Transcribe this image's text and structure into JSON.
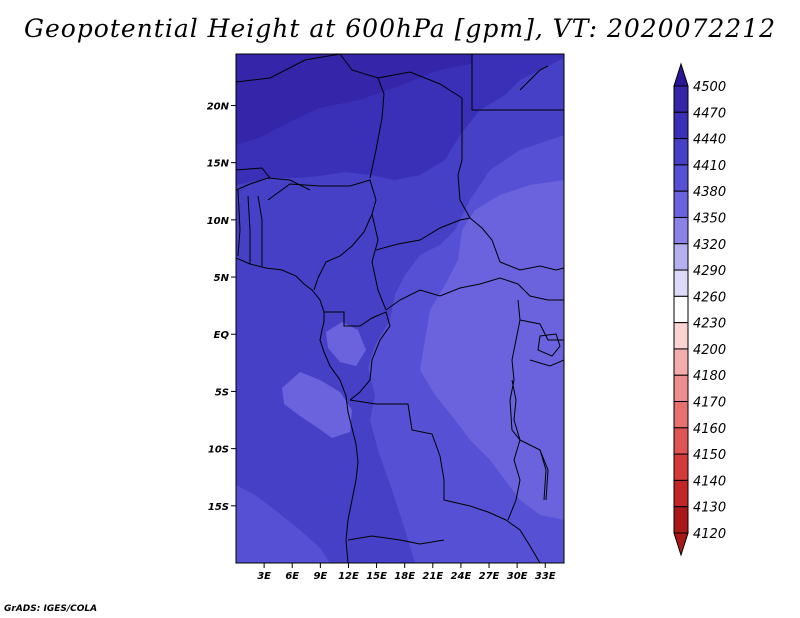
{
  "title": "Geopotential Height at 600hPa [gpm], VT: 2020072212",
  "footer": "GrADS: IGES/COLA",
  "map": {
    "lon_range": [
      0,
      35
    ],
    "lat_range": [
      -20,
      24.5
    ],
    "lat_ticks": [
      {
        "value": 20,
        "label": "20N"
      },
      {
        "value": 15,
        "label": "15N"
      },
      {
        "value": 10,
        "label": "10N"
      },
      {
        "value": 5,
        "label": "5N"
      },
      {
        "value": 0,
        "label": "EQ"
      },
      {
        "value": -5,
        "label": "5S"
      },
      {
        "value": -10,
        "label": "10S"
      },
      {
        "value": -15,
        "label": "15S"
      }
    ],
    "lon_ticks": [
      {
        "value": 3,
        "label": "3E"
      },
      {
        "value": 6,
        "label": "6E"
      },
      {
        "value": 9,
        "label": "9E"
      },
      {
        "value": 12,
        "label": "12E"
      },
      {
        "value": 15,
        "label": "15E"
      },
      {
        "value": 18,
        "label": "18E"
      },
      {
        "value": 21,
        "label": "21E"
      },
      {
        "value": 24,
        "label": "24E"
      },
      {
        "value": 27,
        "label": "27E"
      },
      {
        "value": 30,
        "label": "30E"
      },
      {
        "value": 33,
        "label": "33E"
      }
    ]
  },
  "colorbar": {
    "levels": [
      "4500",
      "4470",
      "4440",
      "4410",
      "4380",
      "4350",
      "4320",
      "4290",
      "4260",
      "4230",
      "4200",
      "4180",
      "4170",
      "4160",
      "4150",
      "4140",
      "4130",
      "4120"
    ],
    "colors": [
      "#2a1796",
      "#3525a9",
      "#3a30b8",
      "#4540c6",
      "#5650d4",
      "#6a63dd",
      "#8a82e6",
      "#b5b0f0",
      "#dcdaf8",
      "#ffffff",
      "#fcd3d3",
      "#f5acac",
      "#ee8d8d",
      "#e77070",
      "#df5454",
      "#d43a3a",
      "#c22626",
      "#a81818"
    ]
  },
  "field": {
    "bands": [
      {
        "level": "4470",
        "color": "#3525a9"
      },
      {
        "level": "4440",
        "color": "#3a30b8"
      },
      {
        "level": "4410",
        "color": "#4540c6"
      },
      {
        "level": "4380",
        "color": "#5650d4"
      },
      {
        "level": "4350",
        "color": "#6a63dd"
      }
    ]
  }
}
